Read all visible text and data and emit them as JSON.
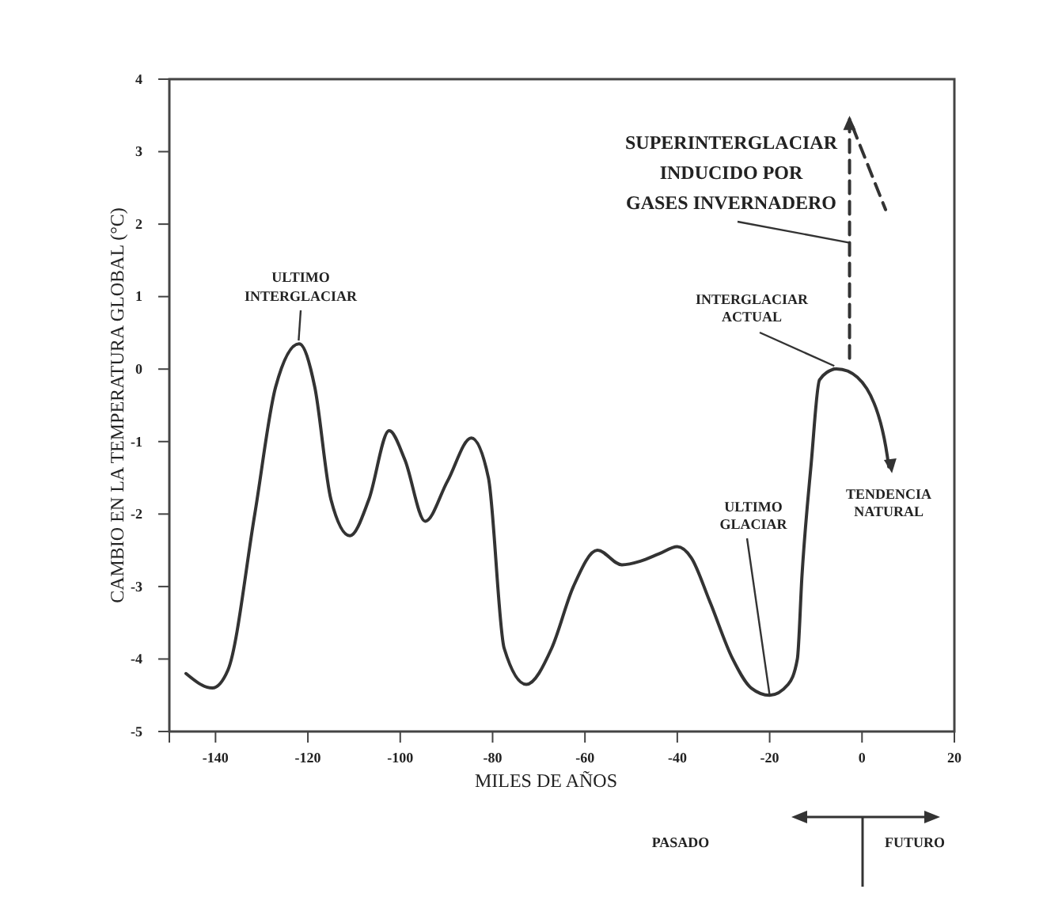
{
  "chart_data": {
    "type": "line",
    "xlabel": "MILES DE AÑOS",
    "ylabel": "CAMBIO EN LA TEMPERATURA GLOBAL (°C)",
    "xlim": [
      -150,
      20
    ],
    "xticks": [
      -140,
      -120,
      -100,
      -80,
      -60,
      -40,
      -20,
      0,
      20
    ],
    "ylim": [
      -5,
      4
    ],
    "yticks": [
      4,
      3,
      2,
      1,
      0,
      -1,
      -2,
      -3,
      -4,
      -5
    ],
    "grid": false,
    "marker": "none",
    "series": [
      {
        "color": "#333333",
        "line_style": "solid",
        "x": [
          -146.4,
          -140.7,
          -137.3,
          -131.5,
          -127,
          -121.9,
          -118.5,
          -115,
          -110.9,
          -106.8,
          -102.4,
          -99,
          -94.6,
          -89.8,
          -84.6,
          -80.9,
          -77.5,
          -72.7,
          -67.2,
          -62.5,
          -57.3,
          -52,
          -48,
          -44,
          -40,
          -37,
          -33,
          -28,
          -24,
          -20,
          -16,
          -14,
          -13,
          -11,
          -9.2,
          -6.1
        ],
        "values": [
          -4.2,
          -4.4,
          -4.15,
          -2.0,
          -0.25,
          0.35,
          -0.25,
          -1.8,
          -2.3,
          -1.8,
          -0.85,
          -1.25,
          -2.1,
          -1.55,
          -0.95,
          -1.5,
          -3.85,
          -4.35,
          -3.85,
          -3.0,
          -2.5,
          -2.7,
          -2.65,
          -2.55,
          -2.45,
          -2.6,
          -3.2,
          -4.0,
          -4.4,
          -4.5,
          -4.35,
          -4.0,
          -2.85,
          -1.3,
          -0.15,
          0.0
        ]
      },
      {
        "color": "#333333",
        "line_style": "dashed",
        "x": [
          -2.7,
          -2.7,
          5.1
        ],
        "values": [
          0.15,
          3.45,
          2.2
        ]
      }
    ],
    "annotations": [
      {
        "text": "ULTIMO INTERGLACIAR",
        "x": -122,
        "y": 0.35
      },
      {
        "text": "SUPERINTERGLACIAR INDUCIDO POR GASES INVERNADERO",
        "x": -2.7,
        "y": 1.7
      },
      {
        "text": "INTERGLACIAR ACTUAL",
        "x": -6,
        "y": 0.0
      },
      {
        "text": "ULTIMO GLACIAR",
        "x": -20,
        "y": -4.5
      },
      {
        "text": "TENDENCIA NATURAL",
        "x": 5.8,
        "y": -1.35
      },
      "PASADO",
      "FUTURO"
    ]
  }
}
